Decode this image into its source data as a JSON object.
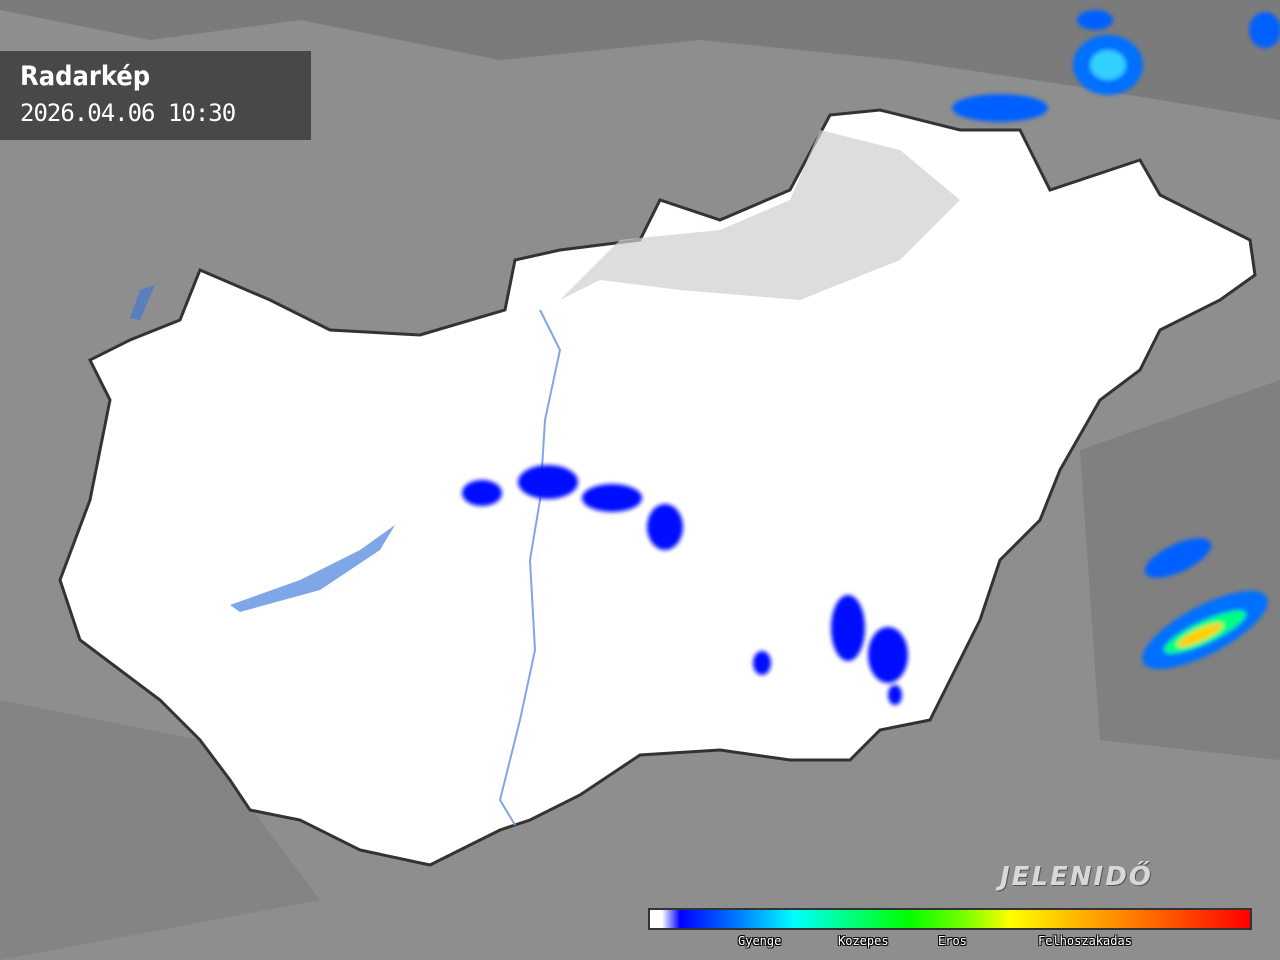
{
  "header": {
    "title": "Radarkép",
    "timestamp": "2026.04.06 10:30"
  },
  "logo": {
    "text": "JELENIDŐ"
  },
  "legend": {
    "labels": [
      "Gyenge",
      "Kozepes",
      "Eros",
      "Felhoszakadas"
    ],
    "colors": [
      "#ffffff",
      "#0000ff",
      "#00ffff",
      "#00ff00",
      "#ffff00",
      "#ff8000",
      "#ff0000"
    ]
  },
  "colors": {
    "background": "#8e8e8e",
    "country": "#ffffff",
    "border": "#333333",
    "water": "#7fa6e6",
    "precip_weak": "#0010ff",
    "precip_mid": "#00e0ff"
  }
}
